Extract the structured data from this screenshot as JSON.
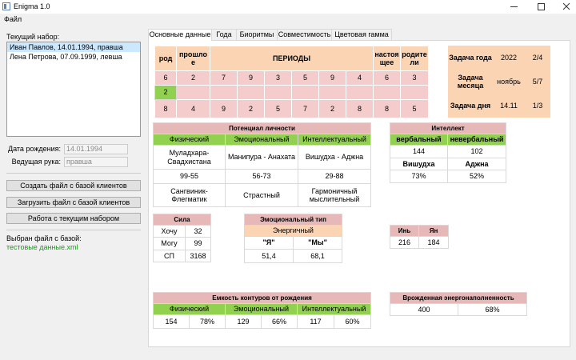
{
  "window": {
    "title": "Enigma 1.0"
  },
  "menu": [
    "Файл"
  ],
  "left": {
    "set_label": "Текущий набор:",
    "clients": [
      "Иван Павлов, 14.01.1994, правша",
      "Лена Петрова, 07.09.1999, левша"
    ],
    "birth_label": "Дата рождения:",
    "birth_value": "14.01.1994",
    "hand_label": "Ведущая рука:",
    "hand_value": "правша",
    "buttons": [
      "Создать файл с базой клиентов",
      "Загрузить файл с базой клиентов",
      "Работа с текущим набором"
    ],
    "file_label": "Выбран файл с базой:",
    "file_name": "тестовые данные.xml"
  },
  "tabs": [
    "Основные данные",
    "Года",
    "Биоритмы",
    "Совместимость",
    "Цветовая гамма"
  ],
  "periods": {
    "headers": [
      "род",
      "прошлое",
      "ПЕРИОДЫ",
      "настоящее",
      "родители"
    ],
    "rows": [
      [
        6,
        2,
        7,
        9,
        3,
        5,
        9,
        4,
        6,
        3
      ],
      [
        2
      ],
      [
        8,
        4,
        9,
        2,
        5,
        7,
        2,
        8,
        8,
        5
      ]
    ]
  },
  "tasks": [
    [
      "Задача года",
      2022,
      "2/4"
    ],
    [
      "Задача месяца",
      "ноябрь",
      "5/7"
    ],
    [
      "Задача дня",
      "14.11",
      "1/3"
    ]
  ],
  "potential": {
    "title": "Потенциал личности",
    "columns": [
      "Физический",
      "Эмоциональный",
      "Интеллектуальный"
    ],
    "rows": [
      [
        "Муладхара-Свадхистана",
        "Манипура - Анахата",
        "Вишудха - Аджна"
      ],
      [
        "99-55",
        "56-73",
        "29-88"
      ],
      [
        "Сангвиник-Флегматик",
        "Страстный",
        "Гармоничный мыслительный"
      ]
    ]
  },
  "intellect": {
    "title": "Интеллект",
    "columns": [
      "вербальный",
      "невербальный"
    ],
    "values": [
      144,
      102
    ],
    "chakras": [
      "Вишудха",
      "Аджна"
    ],
    "percents": [
      "73%",
      "52%"
    ]
  },
  "strength": {
    "title": "Сила",
    "rows": [
      [
        "Хочу",
        32
      ],
      [
        "Могу",
        99
      ],
      [
        "СП",
        3168
      ]
    ]
  },
  "emotional_type": {
    "title": "Эмоциональный тип",
    "type": "Энергичный",
    "columns": [
      "\"Я\"",
      "\"Мы\""
    ],
    "values": [
      "51,4",
      "68,1"
    ]
  },
  "yin_yang": {
    "columns": [
      "Инь",
      "Ян"
    ],
    "values": [
      216,
      184
    ]
  },
  "capacity": {
    "title": "Емкость контуров от рождения",
    "columns": [
      "Физический",
      "Эмоциональный",
      "Интеллектуальный"
    ],
    "values": [
      [
        154,
        "78%"
      ],
      [
        129,
        "66%"
      ],
      [
        117,
        "60%"
      ]
    ]
  },
  "energy": {
    "title": "Врожденная энергонаполненность",
    "values": [
      400,
      "68%"
    ]
  }
}
